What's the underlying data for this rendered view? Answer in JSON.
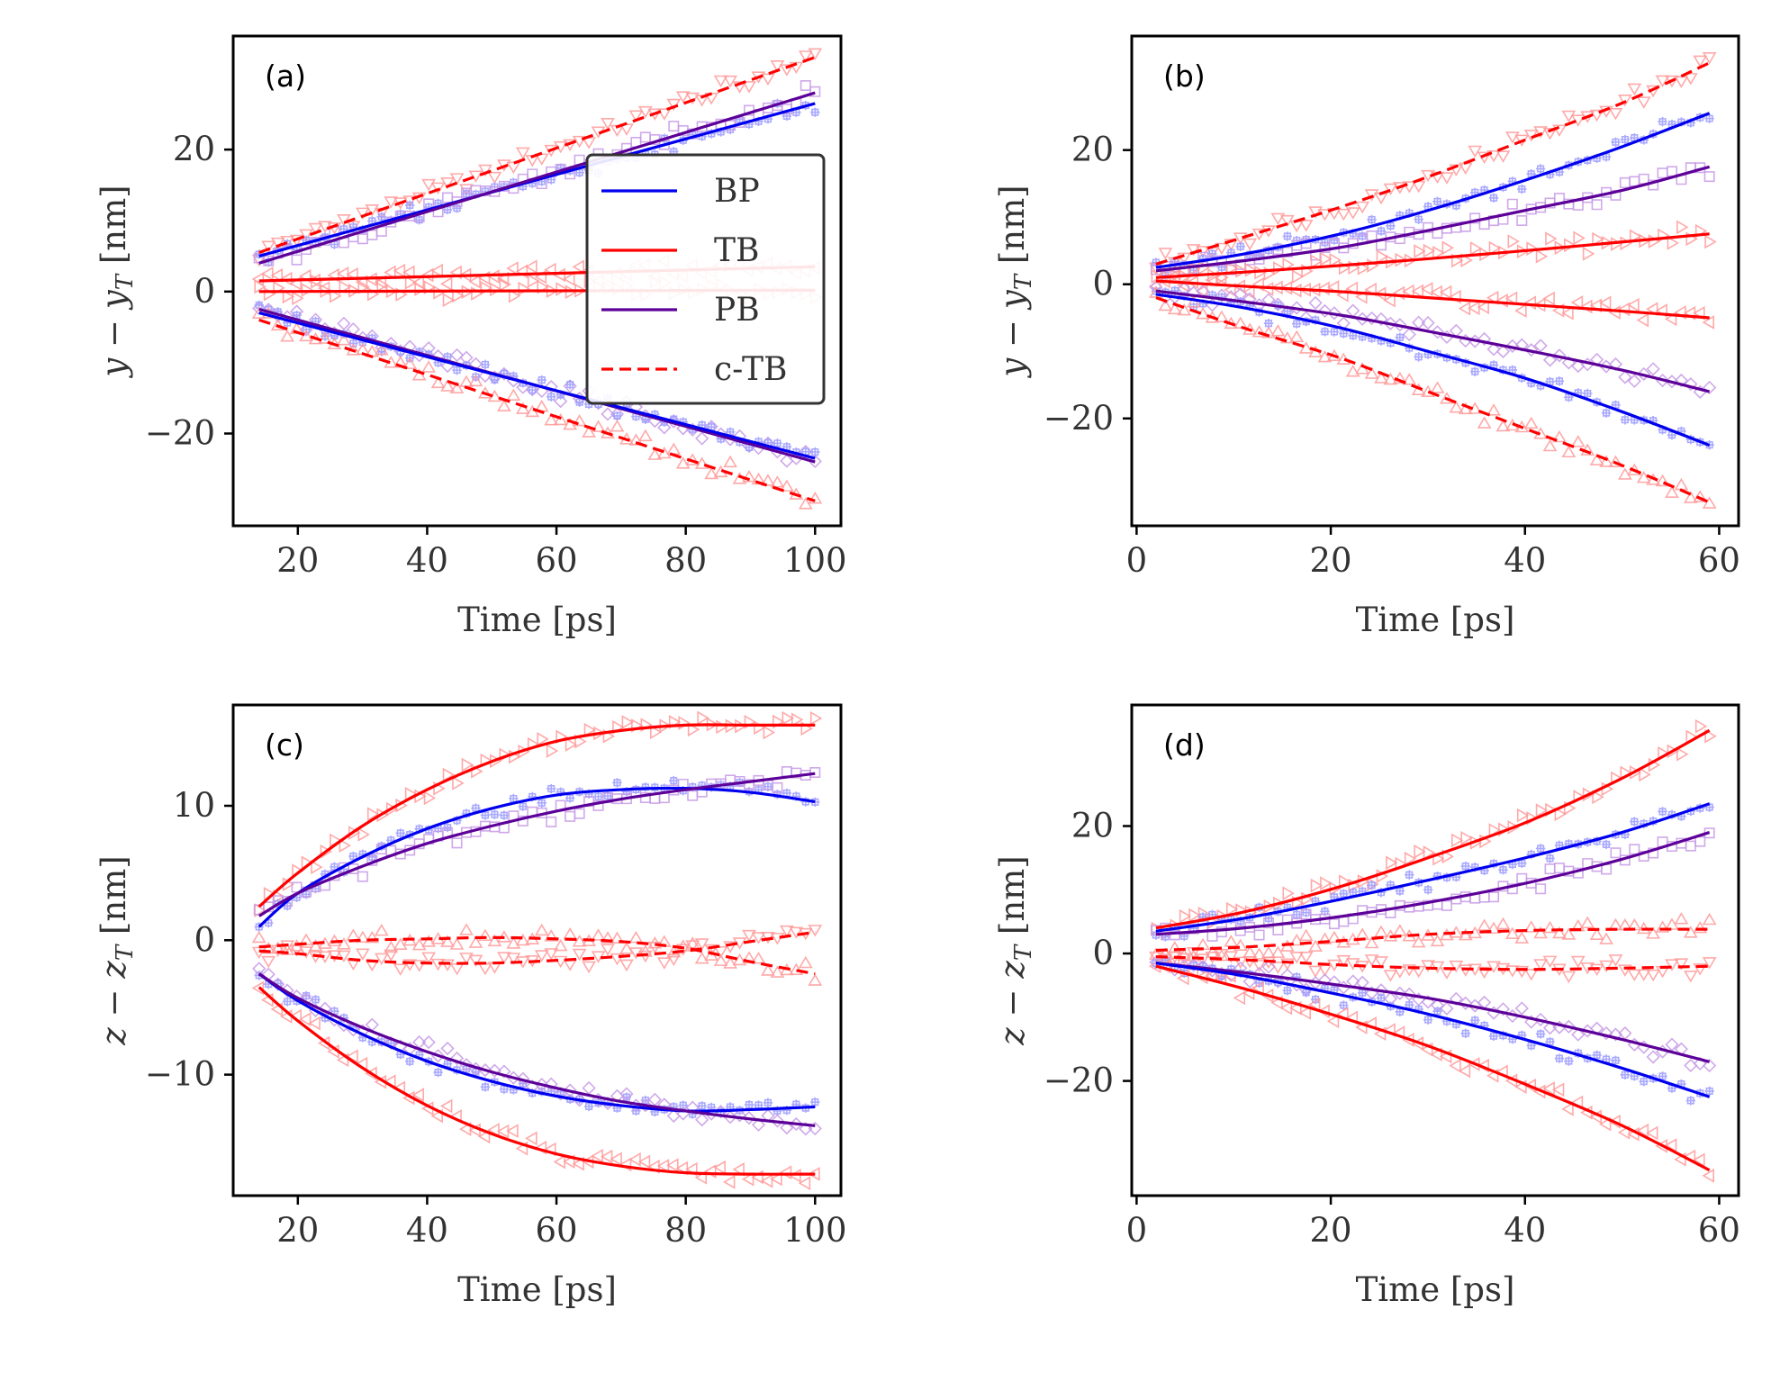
{
  "colors": {
    "BP": "#0000ee",
    "TB": "#ff0000",
    "PB": "#5c0099",
    "cTB": "#ff0000",
    "frame": "#000000"
  },
  "legend": {
    "placement": "right-center of panel (a)",
    "entries": [
      {
        "name": "BP",
        "color": "#0000ee",
        "dash": false
      },
      {
        "name": "TB",
        "color": "#ff0000",
        "dash": false
      },
      {
        "name": "PB",
        "color": "#5c0099",
        "dash": false
      },
      {
        "name": "c-TB",
        "color": "#ff0000",
        "dash": true
      }
    ]
  },
  "chart_data": [
    {
      "panel": "(a)",
      "type": "line",
      "xlabel": "Time [ps]",
      "ylabel": "y − y_T [nm]",
      "xlim": [
        10,
        104
      ],
      "ylim": [
        -33,
        36
      ],
      "xticks": [
        20,
        40,
        60,
        80,
        100
      ],
      "yticks": [
        -20,
        0,
        20
      ],
      "ytick_labels": [
        "−20",
        "0",
        "20"
      ],
      "series": [
        {
          "name": "c-TB",
          "color": "#ff0000",
          "dash": true,
          "x": [
            14,
            100
          ],
          "y": [
            5.5,
            33.0
          ],
          "marker": "tri-down"
        },
        {
          "name": "BP",
          "color": "#0000ee",
          "dash": false,
          "x": [
            14,
            100
          ],
          "y": [
            5.0,
            26.5
          ],
          "marker": "plus"
        },
        {
          "name": "PB",
          "color": "#5c0099",
          "dash": false,
          "x": [
            14,
            100
          ],
          "y": [
            4.0,
            28.0
          ],
          "marker": "square"
        },
        {
          "name": "TB",
          "color": "#ff0000",
          "dash": false,
          "x": [
            14,
            100
          ],
          "y": [
            1.5,
            3.5
          ],
          "marker": "tri-left"
        },
        {
          "name": "TB",
          "color": "#ff0000",
          "dash": false,
          "x": [
            14,
            100
          ],
          "y": [
            0.0,
            0.2
          ],
          "marker": "tri-right"
        },
        {
          "name": "PB",
          "color": "#5c0099",
          "dash": false,
          "x": [
            14,
            100
          ],
          "y": [
            -2.5,
            -24.0
          ],
          "marker": "diamond"
        },
        {
          "name": "BP",
          "color": "#0000ee",
          "dash": false,
          "x": [
            14,
            100
          ],
          "y": [
            -3.0,
            -23.5
          ],
          "marker": "plus"
        },
        {
          "name": "c-TB",
          "color": "#ff0000",
          "dash": true,
          "x": [
            14,
            100
          ],
          "y": [
            -4.0,
            -29.5
          ],
          "marker": "tri-up"
        }
      ]
    },
    {
      "panel": "(b)",
      "type": "line",
      "xlabel": "Time [ps]",
      "ylabel": "y − y_T [nm]",
      "xlim": [
        -0.5,
        62
      ],
      "ylim": [
        -36,
        37
      ],
      "xticks": [
        0,
        20,
        40,
        60
      ],
      "yticks": [
        -20,
        0,
        20
      ],
      "ytick_labels": [
        "−20",
        "0",
        "20"
      ],
      "series": [
        {
          "name": "c-TB",
          "color": "#ff0000",
          "dash": true,
          "x": [
            2,
            11,
            21,
            30,
            40,
            50,
            59
          ],
          "y": [
            3.0,
            7.0,
            11.5,
            16.0,
            21.5,
            27.0,
            33.0
          ],
          "marker": "tri-down"
        },
        {
          "name": "BP",
          "color": "#0000ee",
          "dash": false,
          "x": [
            2,
            11,
            21,
            30,
            40,
            50,
            59
          ],
          "y": [
            2.5,
            4.5,
            7.5,
            11.0,
            15.5,
            20.5,
            25.5
          ],
          "marker": "plus"
        },
        {
          "name": "PB",
          "color": "#5c0099",
          "dash": false,
          "x": [
            2,
            11,
            21,
            30,
            40,
            50,
            59
          ],
          "y": [
            2.0,
            3.5,
            5.5,
            8.0,
            11.0,
            14.0,
            17.5
          ],
          "marker": "square"
        },
        {
          "name": "TB",
          "color": "#ff0000",
          "dash": false,
          "x": [
            2,
            11,
            21,
            30,
            40,
            50,
            59
          ],
          "y": [
            1.0,
            1.8,
            2.8,
            3.8,
            5.0,
            6.3,
            7.5
          ],
          "marker": "tri-right"
        },
        {
          "name": "TB",
          "color": "#ff0000",
          "dash": false,
          "x": [
            2,
            11,
            21,
            30,
            40,
            50,
            59
          ],
          "y": [
            0.5,
            -0.3,
            -1.1,
            -2.0,
            -3.0,
            -4.0,
            -5.0
          ],
          "marker": "tri-left"
        },
        {
          "name": "PB",
          "color": "#5c0099",
          "dash": false,
          "x": [
            2,
            11,
            21,
            30,
            40,
            50,
            59
          ],
          "y": [
            -1.0,
            -2.6,
            -4.6,
            -7.0,
            -9.8,
            -12.8,
            -16.0
          ],
          "marker": "diamond"
        },
        {
          "name": "BP",
          "color": "#0000ee",
          "dash": false,
          "x": [
            2,
            11,
            21,
            30,
            40,
            50,
            59
          ],
          "y": [
            -1.5,
            -3.5,
            -6.5,
            -10.0,
            -14.0,
            -19.0,
            -24.0
          ],
          "marker": "plus"
        },
        {
          "name": "c-TB",
          "color": "#ff0000",
          "dash": true,
          "x": [
            2,
            11,
            21,
            30,
            40,
            50,
            59
          ],
          "y": [
            -2.0,
            -6.5,
            -11.0,
            -16.0,
            -21.5,
            -27.0,
            -32.5
          ],
          "marker": "tri-up"
        }
      ]
    },
    {
      "panel": "(c)",
      "type": "line",
      "xlabel": "Time [ps]",
      "ylabel": "z − z_T [nm]",
      "xlim": [
        10,
        104
      ],
      "ylim": [
        -19,
        17.5
      ],
      "xticks": [
        20,
        40,
        60,
        80,
        100
      ],
      "yticks": [
        -10,
        0,
        10
      ],
      "ytick_labels": [
        "−10",
        "0",
        "10"
      ],
      "series": [
        {
          "name": "TB",
          "color": "#ff0000",
          "dash": false,
          "x": [
            14,
            20,
            30,
            40,
            50,
            60,
            70,
            80,
            90,
            100
          ],
          "y": [
            2.5,
            5.0,
            8.5,
            11.2,
            13.3,
            14.8,
            15.6,
            16.0,
            16.0,
            16.0
          ],
          "marker": "tri-right"
        },
        {
          "name": "BP",
          "color": "#0000ee",
          "dash": false,
          "x": [
            14,
            20,
            30,
            40,
            50,
            60,
            70,
            80,
            90,
            100
          ],
          "y": [
            1.0,
            3.5,
            6.2,
            8.3,
            9.8,
            10.8,
            11.2,
            11.3,
            11.0,
            10.3
          ],
          "marker": "plus"
        },
        {
          "name": "PB",
          "color": "#5c0099",
          "dash": false,
          "x": [
            14,
            20,
            30,
            40,
            50,
            60,
            70,
            80,
            90,
            100
          ],
          "y": [
            1.8,
            3.5,
            5.5,
            7.2,
            8.5,
            9.6,
            10.5,
            11.2,
            11.8,
            12.4
          ],
          "marker": "square"
        },
        {
          "name": "c-TB",
          "color": "#ff0000",
          "dash": true,
          "x": [
            14,
            20,
            30,
            40,
            50,
            60,
            70,
            80,
            90,
            100
          ],
          "y": [
            -0.5,
            -0.3,
            0.0,
            0.1,
            0.2,
            0.1,
            -0.1,
            -0.6,
            -1.6,
            -2.5
          ],
          "marker": "tri-up"
        },
        {
          "name": "c-TB",
          "color": "#ff0000",
          "dash": true,
          "x": [
            14,
            20,
            30,
            40,
            50,
            60,
            70,
            80,
            90,
            100
          ],
          "y": [
            -0.8,
            -1.0,
            -1.5,
            -1.7,
            -1.7,
            -1.5,
            -1.2,
            -0.8,
            -0.1,
            0.6
          ],
          "marker": "tri-down"
        },
        {
          "name": "BP",
          "color": "#0000ee",
          "dash": false,
          "x": [
            14,
            20,
            30,
            40,
            50,
            60,
            70,
            80,
            90,
            100
          ],
          "y": [
            -2.5,
            -4.5,
            -7.0,
            -9.0,
            -10.5,
            -11.6,
            -12.3,
            -12.7,
            -12.6,
            -12.4
          ],
          "marker": "plus"
        },
        {
          "name": "PB",
          "color": "#5c0099",
          "dash": false,
          "x": [
            14,
            20,
            30,
            40,
            50,
            60,
            70,
            80,
            90,
            100
          ],
          "y": [
            -2.5,
            -4.3,
            -6.5,
            -8.3,
            -9.8,
            -11.0,
            -12.0,
            -12.7,
            -13.3,
            -13.8
          ],
          "marker": "diamond"
        },
        {
          "name": "TB",
          "color": "#ff0000",
          "dash": false,
          "x": [
            14,
            20,
            30,
            40,
            50,
            60,
            70,
            80,
            90,
            100
          ],
          "y": [
            -3.5,
            -6.0,
            -9.5,
            -12.3,
            -14.4,
            -15.9,
            -16.8,
            -17.3,
            -17.4,
            -17.4
          ],
          "marker": "tri-left"
        }
      ]
    },
    {
      "panel": "(d)",
      "type": "line",
      "xlabel": "Time [ps]",
      "ylabel": "z − z_T [nm]",
      "xlim": [
        -0.5,
        62
      ],
      "ylim": [
        -38,
        39
      ],
      "xticks": [
        0,
        20,
        40,
        60
      ],
      "yticks": [
        -20,
        0,
        20
      ],
      "ytick_labels": [
        "−20",
        "0",
        "20"
      ],
      "series": [
        {
          "name": "TB",
          "color": "#ff0000",
          "dash": false,
          "x": [
            2,
            11,
            21,
            30,
            40,
            50,
            59
          ],
          "y": [
            4.0,
            6.5,
            10.5,
            15.0,
            20.5,
            27.5,
            35.0
          ],
          "marker": "tri-right"
        },
        {
          "name": "BP",
          "color": "#0000ee",
          "dash": false,
          "x": [
            2,
            11,
            21,
            30,
            40,
            50,
            59
          ],
          "y": [
            3.5,
            5.5,
            8.5,
            11.5,
            15.0,
            19.0,
            23.5
          ],
          "marker": "plus"
        },
        {
          "name": "PB",
          "color": "#5c0099",
          "dash": false,
          "x": [
            2,
            11,
            21,
            30,
            40,
            50,
            59
          ],
          "y": [
            3.0,
            4.0,
            5.8,
            8.0,
            11.0,
            14.8,
            19.0
          ],
          "marker": "square"
        },
        {
          "name": "c-TB",
          "color": "#ff0000",
          "dash": true,
          "x": [
            2,
            11,
            21,
            30,
            40,
            50,
            59
          ],
          "y": [
            0.5,
            1.0,
            2.0,
            3.0,
            3.6,
            3.8,
            3.8
          ],
          "marker": "tri-up"
        },
        {
          "name": "c-TB",
          "color": "#ff0000",
          "dash": true,
          "x": [
            2,
            11,
            21,
            30,
            40,
            50,
            59
          ],
          "y": [
            -0.5,
            -1.0,
            -1.8,
            -2.3,
            -2.5,
            -2.3,
            -2.0
          ],
          "marker": "tri-down"
        },
        {
          "name": "PB",
          "color": "#5c0099",
          "dash": false,
          "x": [
            2,
            11,
            21,
            30,
            40,
            50,
            59
          ],
          "y": [
            -1.5,
            -3.0,
            -5.0,
            -7.0,
            -10.0,
            -13.5,
            -17.0
          ],
          "marker": "diamond"
        },
        {
          "name": "BP",
          "color": "#0000ee",
          "dash": false,
          "x": [
            2,
            11,
            21,
            30,
            40,
            50,
            59
          ],
          "y": [
            -1.5,
            -3.5,
            -6.5,
            -9.5,
            -13.5,
            -18.0,
            -22.5
          ],
          "marker": "plus"
        },
        {
          "name": "TB",
          "color": "#ff0000",
          "dash": false,
          "x": [
            2,
            11,
            21,
            30,
            40,
            50,
            59
          ],
          "y": [
            -2.0,
            -5.5,
            -10.0,
            -14.5,
            -20.5,
            -27.0,
            -34.0
          ],
          "marker": "tri-left"
        }
      ]
    }
  ]
}
